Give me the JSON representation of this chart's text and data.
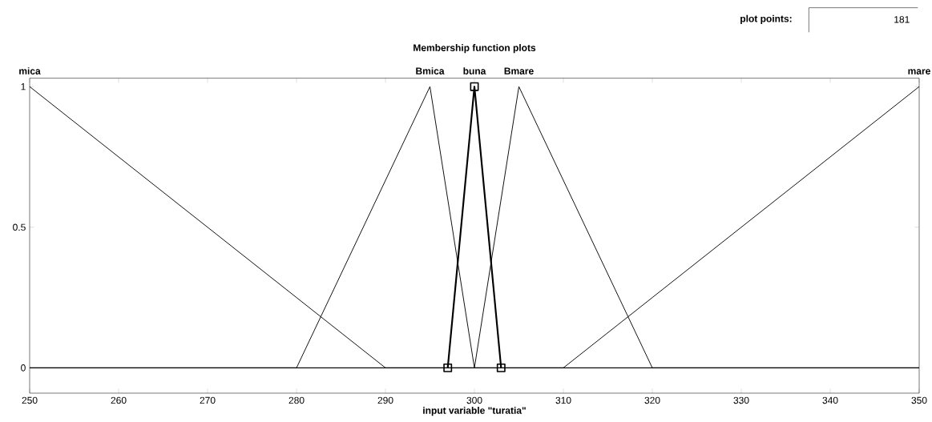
{
  "chart_data": {
    "type": "line",
    "title": "Membership function plots",
    "xlabel": "input variable \"turatia\"",
    "annotations": [
      "plot points:",
      "181"
    ],
    "xlim": [
      250,
      350
    ],
    "ylim": [
      -0.09,
      1.03
    ],
    "xticks": [
      250,
      260,
      270,
      280,
      290,
      300,
      310,
      320,
      330,
      340,
      350
    ],
    "yticks": [
      0,
      0.5,
      1
    ],
    "grid": false,
    "legend": false,
    "series": [
      {
        "name": "mica",
        "color": "#000000",
        "x": [
          250,
          290,
          350
        ],
        "values": [
          1,
          0,
          0
        ]
      },
      {
        "name": "Bmica",
        "color": "#000000",
        "x": [
          250,
          280,
          295,
          300,
          350
        ],
        "values": [
          0,
          0,
          1,
          0,
          0
        ]
      },
      {
        "name": "buna",
        "color": "#000000",
        "x": [
          297,
          300,
          303
        ],
        "values": [
          0,
          1,
          0
        ],
        "marker": "square"
      },
      {
        "name": "Bmare",
        "color": "#000000",
        "x": [
          250,
          300,
          305,
          320,
          350
        ],
        "values": [
          0,
          0,
          1,
          0,
          0
        ]
      },
      {
        "name": "mare",
        "color": "#000000",
        "x": [
          250,
          310,
          350
        ],
        "values": [
          0,
          0,
          1
        ]
      }
    ]
  }
}
